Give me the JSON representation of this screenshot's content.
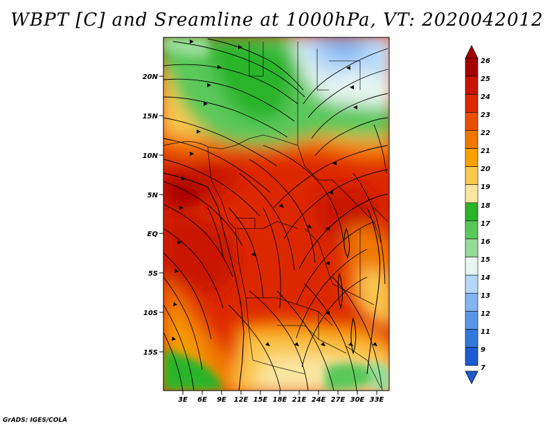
{
  "title": "WBPT [C] and Sreamline at 1000hPa, VT: 2020042012",
  "footer": "GrADS: IGES/COLA",
  "map": {
    "lat_labels": [
      "20N",
      "15N",
      "10N",
      "5N",
      "EQ",
      "5S",
      "10S",
      "15S"
    ],
    "lon_labels": [
      "3E",
      "6E",
      "9E",
      "12E",
      "15E",
      "18E",
      "21E",
      "24E",
      "27E",
      "30E",
      "33E"
    ]
  },
  "colorbar": {
    "labels": [
      "26",
      "25",
      "24",
      "23",
      "22",
      "21",
      "20",
      "19",
      "18",
      "17",
      "16",
      "15",
      "14",
      "13",
      "12",
      "11",
      "9",
      "7"
    ],
    "colors": [
      "#a50000",
      "#c81400",
      "#dc2800",
      "#e85000",
      "#f07800",
      "#f8a000",
      "#fac850",
      "#fae6a0",
      "#2ab42a",
      "#5ac85a",
      "#96dc96",
      "#e6f5f0",
      "#b4d7fa",
      "#82b4f0",
      "#5a96e6",
      "#3278dc",
      "#1e5ad2",
      "#1e5ad2"
    ]
  },
  "icons": {
    "sea_left": "ocean-shape",
    "colorbar_arrows": "triangle"
  }
}
